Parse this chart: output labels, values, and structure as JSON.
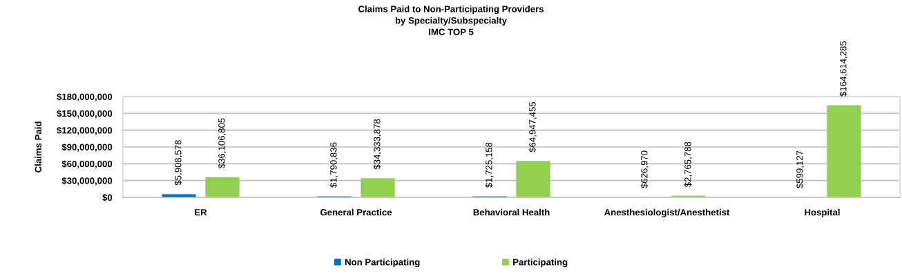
{
  "chart_data": {
    "type": "bar",
    "title": "Claims Paid to Non-Participating Providers\nby Specialty/Subspecialty\nIMC TOP 5",
    "ylabel": "Claims Paid",
    "categories": [
      "ER",
      "General Practice",
      "Behavioral Health",
      "Anesthesiologist/Anesthetist",
      "Hospital"
    ],
    "series": [
      {
        "name": "Non Participating",
        "color": "#0070c0",
        "values": [
          5908578,
          1790836,
          1725158,
          626970,
          599127
        ],
        "value_labels": [
          "$5,908,578",
          "$1,790,836",
          "$1,725,158",
          "$626,970",
          "$599,127"
        ]
      },
      {
        "name": "Participating",
        "color": "#92d050",
        "values": [
          36106805,
          34333878,
          64947455,
          2765788,
          164614285
        ],
        "value_labels": [
          "$36,106,805",
          "$34,333,878",
          "$64,947,455",
          "$2,765,788",
          "$164,614,285"
        ]
      }
    ],
    "ylim": [
      0,
      180000000
    ],
    "yticks": [
      {
        "value": 0,
        "label": "$0"
      },
      {
        "value": 30000000,
        "label": "$30,000,000"
      },
      {
        "value": 60000000,
        "label": "$60,000,000"
      },
      {
        "value": 90000000,
        "label": "$90,000,000"
      },
      {
        "value": 120000000,
        "label": "$120,000,000"
      },
      {
        "value": 150000000,
        "label": "$150,000,000"
      },
      {
        "value": 180000000,
        "label": "$180,000,000"
      }
    ],
    "grid": "y",
    "legend": "bottom"
  }
}
